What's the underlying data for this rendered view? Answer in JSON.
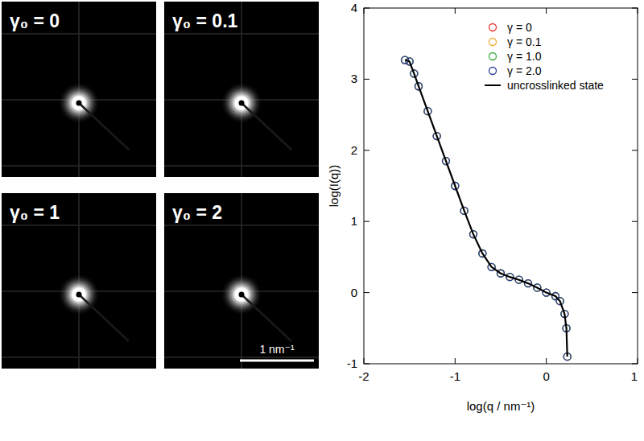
{
  "chart_data": {
    "type": "scatter",
    "x_label": "log(q / nm⁻¹)",
    "y_label": "log(I(q))",
    "x": [
      -1.55,
      -1.5,
      -1.45,
      -1.4,
      -1.3,
      -1.2,
      -1.1,
      -1.0,
      -0.9,
      -0.8,
      -0.7,
      -0.6,
      -0.5,
      -0.4,
      -0.3,
      -0.2,
      -0.1,
      0.0,
      0.1,
      0.15,
      0.2,
      0.22,
      0.23
    ],
    "series": [
      {
        "name": "γ = 0",
        "color": "#e8352b",
        "marker": "circle",
        "values": [
          3.27,
          3.25,
          3.08,
          2.9,
          2.55,
          2.2,
          1.85,
          1.5,
          1.15,
          0.82,
          0.55,
          0.36,
          0.27,
          0.22,
          0.18,
          0.13,
          0.07,
          0.0,
          -0.05,
          -0.12,
          -0.3,
          -0.5,
          -0.9
        ]
      },
      {
        "name": "γ = 0.1",
        "color": "#f0a830",
        "marker": "circle",
        "values": [
          3.27,
          3.25,
          3.08,
          2.9,
          2.55,
          2.2,
          1.85,
          1.5,
          1.15,
          0.82,
          0.55,
          0.36,
          0.27,
          0.22,
          0.18,
          0.13,
          0.07,
          0.0,
          -0.05,
          -0.12,
          -0.3,
          -0.5,
          -0.9
        ]
      },
      {
        "name": "γ = 1.0",
        "color": "#3aa845",
        "marker": "circle",
        "values": [
          3.27,
          3.25,
          3.08,
          2.9,
          2.55,
          2.2,
          1.85,
          1.5,
          1.15,
          0.82,
          0.55,
          0.36,
          0.27,
          0.22,
          0.18,
          0.13,
          0.07,
          0.0,
          -0.05,
          -0.12,
          -0.3,
          -0.5,
          -0.9
        ]
      },
      {
        "name": "γ = 2.0",
        "color": "#2b3f9e",
        "marker": "circle",
        "values": [
          3.27,
          3.25,
          3.08,
          2.9,
          2.55,
          2.2,
          1.85,
          1.5,
          1.15,
          0.82,
          0.55,
          0.36,
          0.27,
          0.22,
          0.18,
          0.13,
          0.07,
          0.0,
          -0.05,
          -0.12,
          -0.3,
          -0.5,
          -0.9
        ]
      },
      {
        "name": "uncrosslinked state",
        "color": "#000000",
        "type": "line",
        "line_style": "solid",
        "values": [
          3.27,
          3.25,
          3.08,
          2.9,
          2.55,
          2.2,
          1.85,
          1.5,
          1.15,
          0.82,
          0.55,
          0.36,
          0.27,
          0.22,
          0.18,
          0.13,
          0.07,
          0.0,
          -0.05,
          -0.12,
          -0.3,
          -0.5,
          -0.9
        ]
      }
    ],
    "xlim": [
      -2,
      1
    ],
    "ylim": [
      -1,
      4
    ],
    "xticks": [
      -2,
      -1,
      0,
      1
    ],
    "yticks": [
      -1,
      0,
      1,
      2,
      3,
      4
    ],
    "legend": "upper right"
  },
  "images": {
    "panels": [
      {
        "label": "γ₀ = 0"
      },
      {
        "label": "γ₀ = 0.1"
      },
      {
        "label": "γ₀ = 1"
      },
      {
        "label": "γ₀ = 2"
      }
    ],
    "scale_bar": "1 nm⁻¹"
  }
}
